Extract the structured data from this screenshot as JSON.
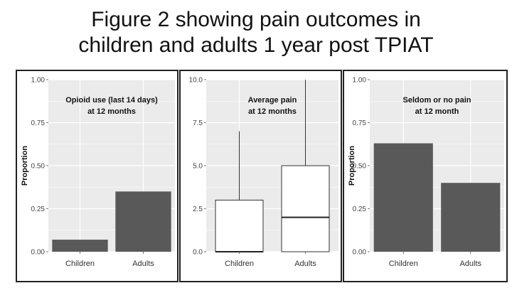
{
  "figure": {
    "title_line1": "Figure 2 showing pain outcomes in",
    "title_line2": "children and adults 1 year post TPIAT"
  },
  "colors": {
    "panel_bg": "#ebebeb",
    "grid": "#ffffff",
    "bar": "#595959",
    "box_fill": "#ffffff",
    "box_stroke": "#333333"
  },
  "chart_data": [
    {
      "type": "bar",
      "annotation": [
        "Opioid use (last 14 days)",
        "at 12 months"
      ],
      "ylabel": "Proportion",
      "xlabel": "",
      "categories": [
        "Children",
        "Adults"
      ],
      "values": [
        0.07,
        0.35
      ],
      "ylim": [
        0,
        1.0
      ],
      "yticks": [
        0,
        0.25,
        0.5,
        0.75,
        1.0
      ],
      "ytick_labels": [
        "0.00",
        "0.25",
        "0.50",
        "0.75",
        "1.00"
      ],
      "grid": true
    },
    {
      "type": "box",
      "annotation": [
        "Average pain",
        "at 12 months"
      ],
      "ylabel": "",
      "xlabel": "",
      "categories": [
        "Children",
        "Adults"
      ],
      "boxes": [
        {
          "min": 0,
          "q1": 0,
          "median": 0,
          "q3": 3.0,
          "max": 7.0
        },
        {
          "min": 0,
          "q1": 0,
          "median": 2.0,
          "q3": 5.0,
          "max": 10.0
        }
      ],
      "ylim": [
        0,
        10
      ],
      "yticks": [
        0,
        2.5,
        5.0,
        7.5,
        10.0
      ],
      "ytick_labels": [
        "0.0",
        "2.5",
        "5.0",
        "7.5",
        "10.0"
      ],
      "grid": true
    },
    {
      "type": "bar",
      "annotation": [
        "Seldom or no pain",
        "at 12 month"
      ],
      "ylabel": "Proportion",
      "xlabel": "",
      "categories": [
        "Children",
        "Adults"
      ],
      "values": [
        0.63,
        0.4
      ],
      "ylim": [
        0,
        1.0
      ],
      "yticks": [
        0,
        0.25,
        0.5,
        0.75,
        1.0
      ],
      "ytick_labels": [
        "0.00",
        "0.25",
        "0.50",
        "0.75",
        "1.00"
      ],
      "grid": true
    }
  ]
}
